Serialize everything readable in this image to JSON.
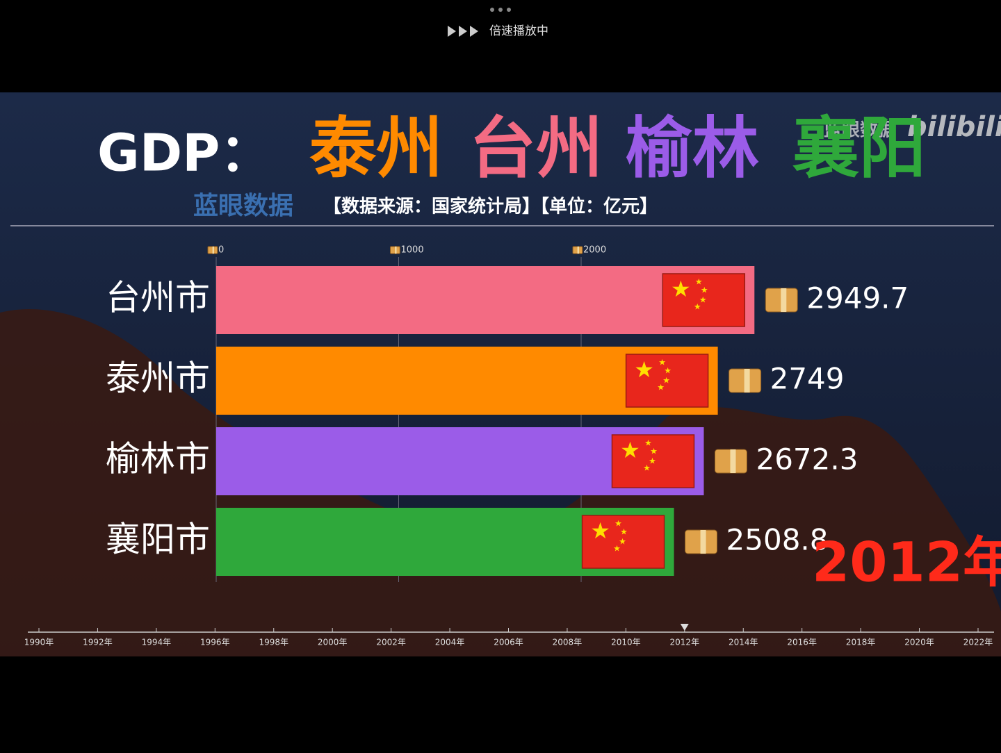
{
  "player": {
    "status": "倍速播放中"
  },
  "header": {
    "prefix": "GDP：",
    "title_parts": [
      {
        "text": "泰州",
        "color": "#ff8a00"
      },
      {
        "text": "台州",
        "color": "#f36b83"
      },
      {
        "text": "榆林",
        "color": "#9b5ce8"
      },
      {
        "text": "襄阳",
        "color": "#2fa83b"
      }
    ],
    "brand": "蓝眼数据",
    "source": "【数据来源：国家统计局】【单位：亿元】",
    "watermark": "蓝眼数据",
    "watermark_logo": "bilibili"
  },
  "chart_data": {
    "type": "bar",
    "orientation": "horizontal",
    "categories": [
      "台州市",
      "泰州市",
      "榆林市",
      "襄阳市"
    ],
    "values": [
      2949.7,
      2749,
      2672.3,
      2508.8
    ],
    "colors": [
      "#f36b83",
      "#ff8a00",
      "#9b5ce8",
      "#2fa83b"
    ],
    "xlim": [
      0,
      4000
    ],
    "xticks": [
      0,
      1000,
      2000
    ],
    "grid": true,
    "period": "2012年"
  },
  "timeline": {
    "labels": [
      "1990年",
      "1992年",
      "1994年",
      "1996年",
      "1998年",
      "2000年",
      "2002年",
      "2004年",
      "2006年",
      "2008年",
      "2010年",
      "2012年",
      "2014年",
      "2016年",
      "2018年",
      "2020年",
      "2022年"
    ]
  }
}
